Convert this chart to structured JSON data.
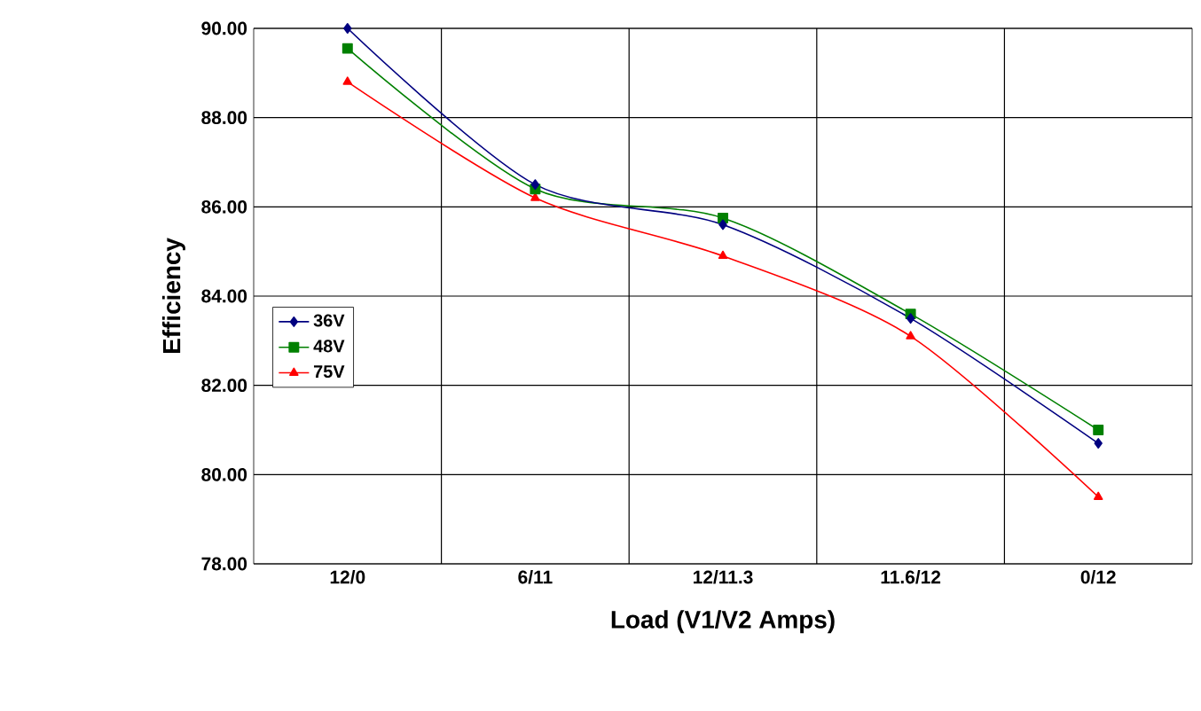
{
  "chart_data": {
    "type": "line",
    "xlabel": "Load (V1/V2 Amps)",
    "ylabel": "Efficiency",
    "categories": [
      "12/0",
      "6/11",
      "12/11.3",
      "11.6/12",
      "0/12"
    ],
    "series": [
      {
        "name": "36V",
        "color": "#000080",
        "marker": "diamond",
        "values": [
          90.0,
          86.5,
          85.6,
          83.5,
          80.7
        ]
      },
      {
        "name": "48V",
        "color": "#008000",
        "marker": "square",
        "values": [
          89.55,
          86.4,
          85.75,
          83.6,
          81.0
        ]
      },
      {
        "name": "75V",
        "color": "#ff0000",
        "marker": "triangle",
        "values": [
          88.8,
          86.2,
          84.9,
          83.1,
          79.5
        ]
      }
    ],
    "ylim": [
      78,
      90
    ],
    "yticks": [
      {
        "value": 78,
        "label": "78.00"
      },
      {
        "value": 80,
        "label": "80.00"
      },
      {
        "value": 82,
        "label": "82.00"
      },
      {
        "value": 84,
        "label": "84.00"
      },
      {
        "value": 86,
        "label": "86.00"
      },
      {
        "value": 88,
        "label": "88.00"
      },
      {
        "value": 90,
        "label": "90.00"
      }
    ],
    "grid": true,
    "legend": "left",
    "line_style": "solid"
  }
}
